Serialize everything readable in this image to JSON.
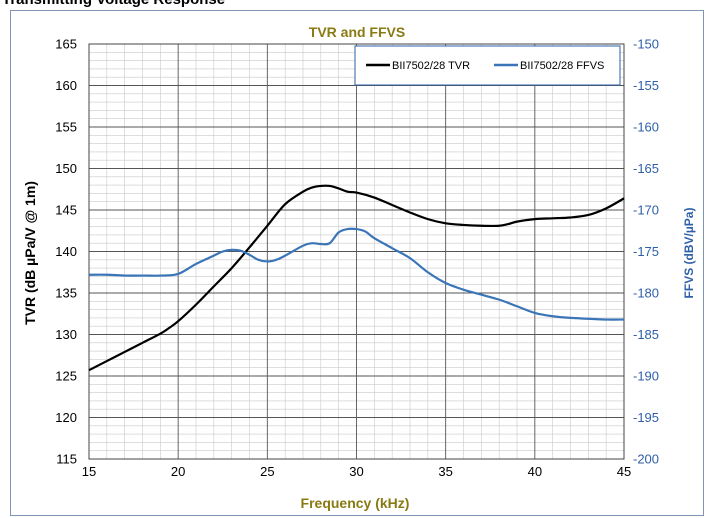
{
  "page_heading": "Transmitting Voltage Response",
  "colors": {
    "title": "#8a7a13",
    "xlabel": "#8a7a13",
    "left_axis": "#000000",
    "right_axis": "#2e5fa8",
    "tvr_series": "#000000",
    "ffvs_series": "#3a75b8",
    "frame": "#7f95b5"
  },
  "chart_data": {
    "type": "line",
    "title": "TVR and FFVS",
    "xlabel": "Frequency (kHz)",
    "ylabel": "TVR (dB µPa/V @ 1m)",
    "y2label": "FFVS (dBV/µPa)",
    "xlim": [
      15,
      45
    ],
    "ylim": [
      115,
      165
    ],
    "y2lim": [
      -200,
      -150
    ],
    "x_ticks": [
      "15",
      "20",
      "25",
      "30",
      "35",
      "40",
      "45"
    ],
    "y_ticks": [
      "115",
      "120",
      "125",
      "130",
      "135",
      "140",
      "145",
      "150",
      "155",
      "160",
      "165"
    ],
    "y2_ticks": [
      "-200",
      "-195",
      "-190",
      "-185",
      "-180",
      "-175",
      "-170",
      "-165",
      "-160",
      "-155",
      "-150"
    ],
    "grid": true,
    "legend": "top-right",
    "series": [
      {
        "name": "BII7502/28 TVR",
        "axis": "left",
        "x": [
          15,
          16,
          17,
          18,
          19,
          19.5,
          20,
          21,
          22,
          23,
          24,
          25,
          26,
          27,
          27.5,
          28,
          28.5,
          29,
          29.5,
          30,
          31,
          32,
          33,
          34,
          35,
          36,
          37,
          38,
          38.5,
          39,
          40,
          41,
          42,
          43,
          44,
          45
        ],
        "y": [
          125.7,
          126.8,
          127.9,
          129.0,
          130.1,
          130.8,
          131.6,
          133.6,
          135.8,
          138.0,
          140.5,
          143.1,
          145.7,
          147.2,
          147.7,
          147.9,
          147.9,
          147.6,
          147.2,
          147.1,
          146.5,
          145.6,
          144.7,
          143.9,
          143.4,
          143.2,
          143.1,
          143.1,
          143.3,
          143.6,
          143.9,
          144.0,
          144.1,
          144.4,
          145.2,
          146.4
        ]
      },
      {
        "name": "BII7502/28 FFVS",
        "axis": "right",
        "x": [
          15,
          16,
          17,
          18,
          19,
          20,
          21,
          22,
          22.5,
          23,
          23.5,
          24,
          24.5,
          25,
          25.5,
          26,
          27,
          27.5,
          28,
          28.5,
          29,
          29.5,
          30,
          30.5,
          31,
          32,
          33,
          34,
          35,
          36,
          37,
          38,
          39,
          40,
          41,
          42,
          43,
          44,
          45
        ],
        "y": [
          -177.8,
          -177.8,
          -177.9,
          -177.9,
          -177.9,
          -177.7,
          -176.5,
          -175.5,
          -175.0,
          -174.8,
          -174.9,
          -175.4,
          -176.0,
          -176.2,
          -176.0,
          -175.5,
          -174.3,
          -174.0,
          -174.1,
          -174.0,
          -172.7,
          -172.3,
          -172.3,
          -172.6,
          -173.4,
          -174.6,
          -175.8,
          -177.5,
          -178.8,
          -179.6,
          -180.2,
          -180.8,
          -181.6,
          -182.4,
          -182.8,
          -183.0,
          -183.1,
          -183.2,
          -183.2
        ]
      }
    ]
  }
}
